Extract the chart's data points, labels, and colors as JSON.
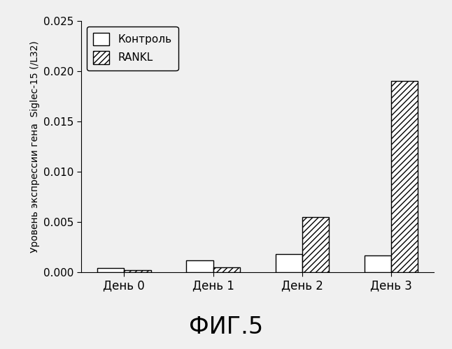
{
  "categories": [
    "День 0",
    "День 1",
    "День 2",
    "День 3"
  ],
  "control_values": [
    0.0004,
    0.0012,
    0.0018,
    0.0017
  ],
  "rankl_values": [
    0.0002,
    0.0005,
    0.0055,
    0.019
  ],
  "ylabel": "Уровень экспрессии гена  Siglec-15 (/L32)",
  "fig_title": "ФИГ.5",
  "ylim": [
    0,
    0.025
  ],
  "yticks": [
    0.0,
    0.005,
    0.01,
    0.015,
    0.02,
    0.025
  ],
  "legend_control": "Контроль",
  "legend_rankl": "RANKL",
  "bar_width": 0.3,
  "control_color": "#ffffff",
  "rankl_hatch": "////",
  "background_color": "#f0f0f0",
  "fig_title_fontsize": 24,
  "axis_fontsize": 10,
  "tick_fontsize": 11,
  "legend_fontsize": 11,
  "xtick_fontsize": 12
}
